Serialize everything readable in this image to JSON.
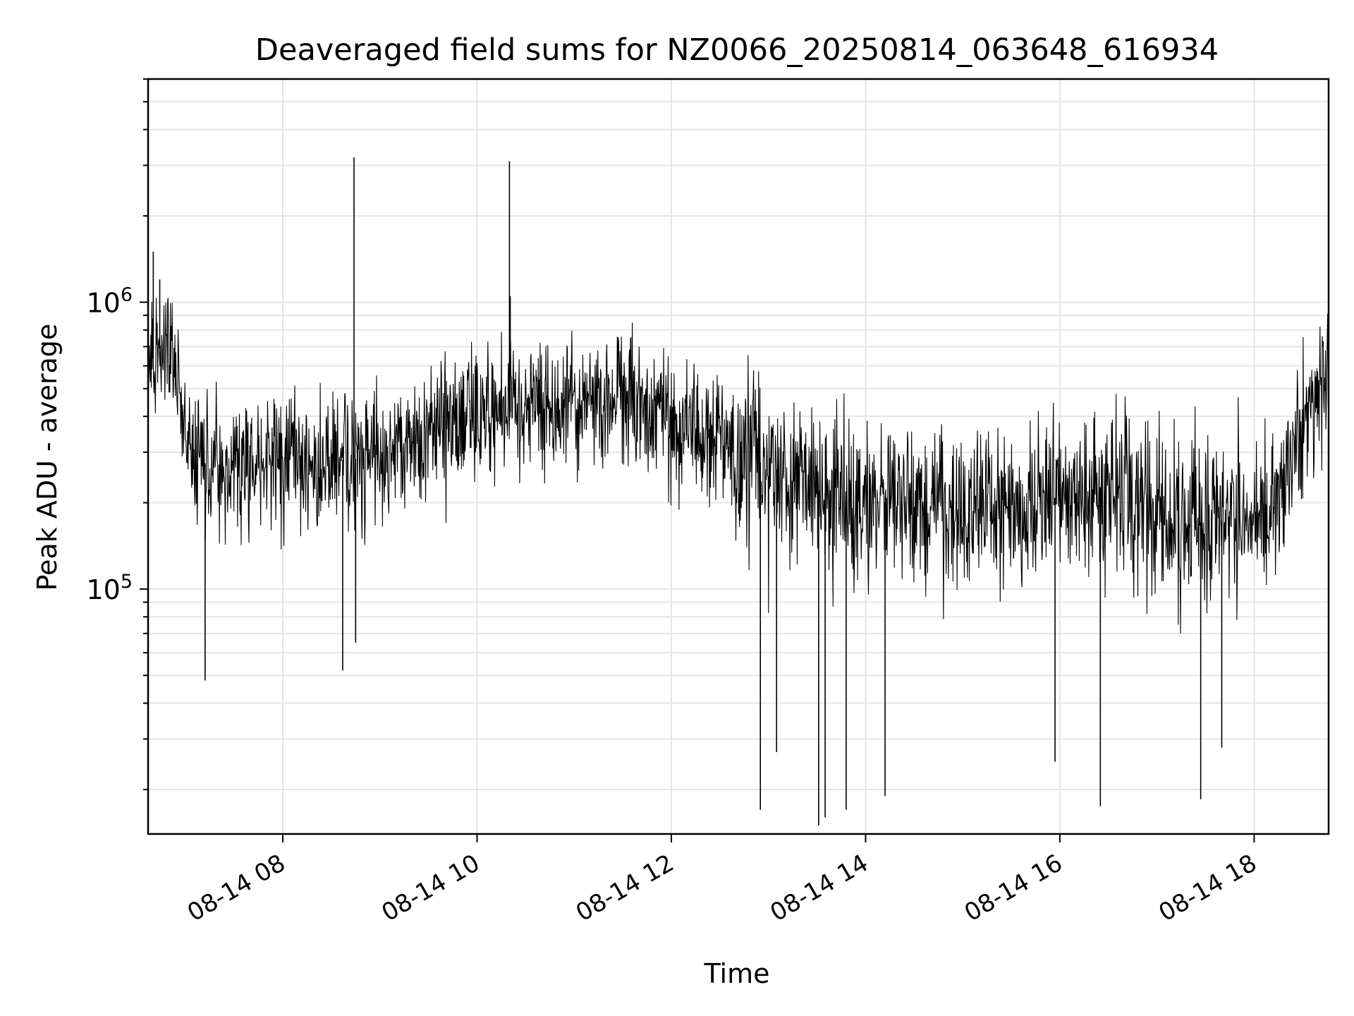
{
  "chart_data": {
    "type": "line",
    "title": "Deaveraged field sums for NZ0066_20250814_063648_616934",
    "xlabel": "Time",
    "ylabel": "Peak ADU - average",
    "x_type": "datetime",
    "xlim": [
      "2025-08-14T06:36:48",
      "2025-08-14T18:46:00"
    ],
    "x_ticks": [
      {
        "value": "2025-08-14T08:00:00",
        "label": "08-14 08"
      },
      {
        "value": "2025-08-14T10:00:00",
        "label": "08-14 10"
      },
      {
        "value": "2025-08-14T12:00:00",
        "label": "08-14 12"
      },
      {
        "value": "2025-08-14T14:00:00",
        "label": "08-14 14"
      },
      {
        "value": "2025-08-14T16:00:00",
        "label": "08-14 16"
      },
      {
        "value": "2025-08-14T18:00:00",
        "label": "08-14 18"
      }
    ],
    "y_scale": "log",
    "ylim": [
      14000,
      6000000
    ],
    "y_ticks": [
      {
        "value": 100000,
        "base": "10",
        "exp": "5"
      },
      {
        "value": 1000000,
        "base": "10",
        "exp": "6"
      }
    ],
    "grid": true,
    "line_color": "#000000",
    "grid_color": "#e5e5e5",
    "series": [
      {
        "baseline": [
          [
            "2025-08-14T06:36:48",
            600000
          ],
          [
            "2025-08-14T06:45:00",
            700000
          ],
          [
            "2025-08-14T06:55:00",
            520000
          ],
          [
            "2025-08-14T07:05:00",
            280000
          ],
          [
            "2025-08-14T07:30:00",
            260000
          ],
          [
            "2025-08-14T08:00:00",
            280000
          ],
          [
            "2025-08-14T08:30:00",
            280000
          ],
          [
            "2025-08-14T09:00:00",
            290000
          ],
          [
            "2025-08-14T09:30:00",
            330000
          ],
          [
            "2025-08-14T10:00:00",
            400000
          ],
          [
            "2025-08-14T10:30:00",
            420000
          ],
          [
            "2025-08-14T11:00:00",
            450000
          ],
          [
            "2025-08-14T11:30:00",
            450000
          ],
          [
            "2025-08-14T12:00:00",
            380000
          ],
          [
            "2025-08-14T12:30:00",
            310000
          ],
          [
            "2025-08-14T13:00:00",
            270000
          ],
          [
            "2025-08-14T13:30:00",
            220000
          ],
          [
            "2025-08-14T14:00:00",
            200000
          ],
          [
            "2025-08-14T14:30:00",
            200000
          ],
          [
            "2025-08-14T15:00:00",
            190000
          ],
          [
            "2025-08-14T15:30:00",
            190000
          ],
          [
            "2025-08-14T16:00:00",
            210000
          ],
          [
            "2025-08-14T16:30:00",
            230000
          ],
          [
            "2025-08-14T17:00:00",
            180000
          ],
          [
            "2025-08-14T17:30:00",
            170000
          ],
          [
            "2025-08-14T18:00:00",
            180000
          ],
          [
            "2025-08-14T18:20:00",
            250000
          ],
          [
            "2025-08-14T18:35:00",
            450000
          ],
          [
            "2025-08-14T18:46:00",
            600000
          ]
        ],
        "spikes": [
          [
            "2025-08-14T06:40:00",
            1500000
          ],
          [
            "2025-08-14T06:44:00",
            1200000
          ],
          [
            "2025-08-14T07:12:00",
            48000
          ],
          [
            "2025-08-14T08:37:00",
            52000
          ],
          [
            "2025-08-14T08:44:00",
            3200000
          ],
          [
            "2025-08-14T08:45:00",
            65000
          ],
          [
            "2025-08-14T10:20:00",
            3100000
          ],
          [
            "2025-08-14T10:20:30",
            1050000
          ],
          [
            "2025-08-14T12:55:00",
            17000
          ],
          [
            "2025-08-14T13:05:00",
            27000
          ],
          [
            "2025-08-14T13:31:00",
            15000
          ],
          [
            "2025-08-14T13:35:00",
            16000
          ],
          [
            "2025-08-14T13:48:00",
            17000
          ],
          [
            "2025-08-14T14:12:00",
            19000
          ],
          [
            "2025-08-14T15:57:00",
            25000
          ],
          [
            "2025-08-14T16:25:00",
            17500
          ],
          [
            "2025-08-14T17:27:00",
            18500
          ],
          [
            "2025-08-14T17:40:00",
            28000
          ]
        ]
      }
    ]
  }
}
